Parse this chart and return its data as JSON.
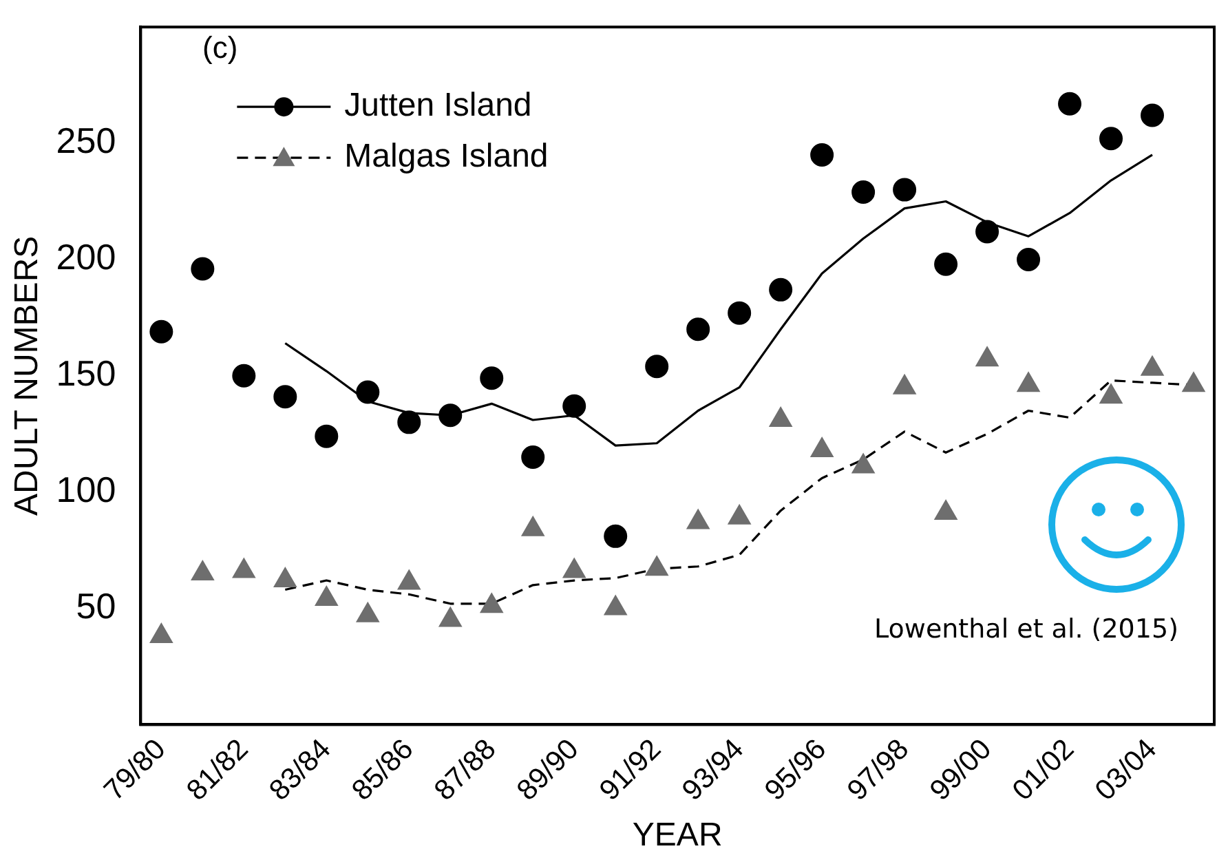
{
  "chart_data": {
    "type": "scatter",
    "xlabel": "YEAR",
    "ylabel": "ADULT NUMBERS",
    "categories": [
      "79/80",
      null,
      "81/82",
      null,
      "83/84",
      null,
      "85/86",
      null,
      "87/88",
      null,
      "89/90",
      null,
      "91/92",
      null,
      "93/94",
      null,
      "95/96",
      null,
      "97/98",
      null,
      "99/00",
      null,
      "01/02",
      null,
      "03/04",
      null
    ],
    "series": [
      {
        "name": "Jutten Island",
        "marker": "circle",
        "color": "#000000",
        "values": [
          169,
          196,
          150,
          141,
          124,
          143,
          130,
          133,
          149,
          115,
          137,
          81,
          154,
          170,
          177,
          187,
          245,
          229,
          230,
          198,
          212,
          200,
          267,
          252,
          262,
          null
        ]
      },
      {
        "type": "line",
        "marker": "none",
        "line_style": "solid",
        "color": "#000000",
        "values": [
          null,
          null,
          null,
          164,
          152,
          139,
          134,
          133,
          138,
          131,
          133,
          120,
          121,
          135,
          145,
          170,
          194,
          209,
          222,
          225,
          216,
          210,
          220,
          234,
          245,
          null
        ]
      },
      {
        "name": "Malgas Island",
        "marker": "triangle",
        "color": "#6e6e6e",
        "values": [
          38,
          65,
          66,
          62,
          54,
          47,
          61,
          45,
          51,
          84,
          66,
          50,
          67,
          87,
          89,
          131,
          118,
          111,
          145,
          91,
          157,
          146,
          null,
          141,
          153,
          146
        ]
      },
      {
        "type": "line",
        "marker": "none",
        "line_style": "dashed",
        "color": "#000000",
        "values": [
          null,
          null,
          null,
          58,
          62,
          58,
          56,
          52,
          52,
          60,
          62,
          63,
          67,
          68,
          73,
          92,
          106,
          114,
          126,
          117,
          125,
          135,
          132,
          148,
          147,
          146
        ]
      }
    ],
    "ylim": [
      0,
      300
    ],
    "yticks": [
      50,
      100,
      150,
      200,
      250
    ],
    "grid": false,
    "legend": "top left",
    "annotations": [
      "(c)",
      "Lowenthal et al. (2015)"
    ]
  }
}
